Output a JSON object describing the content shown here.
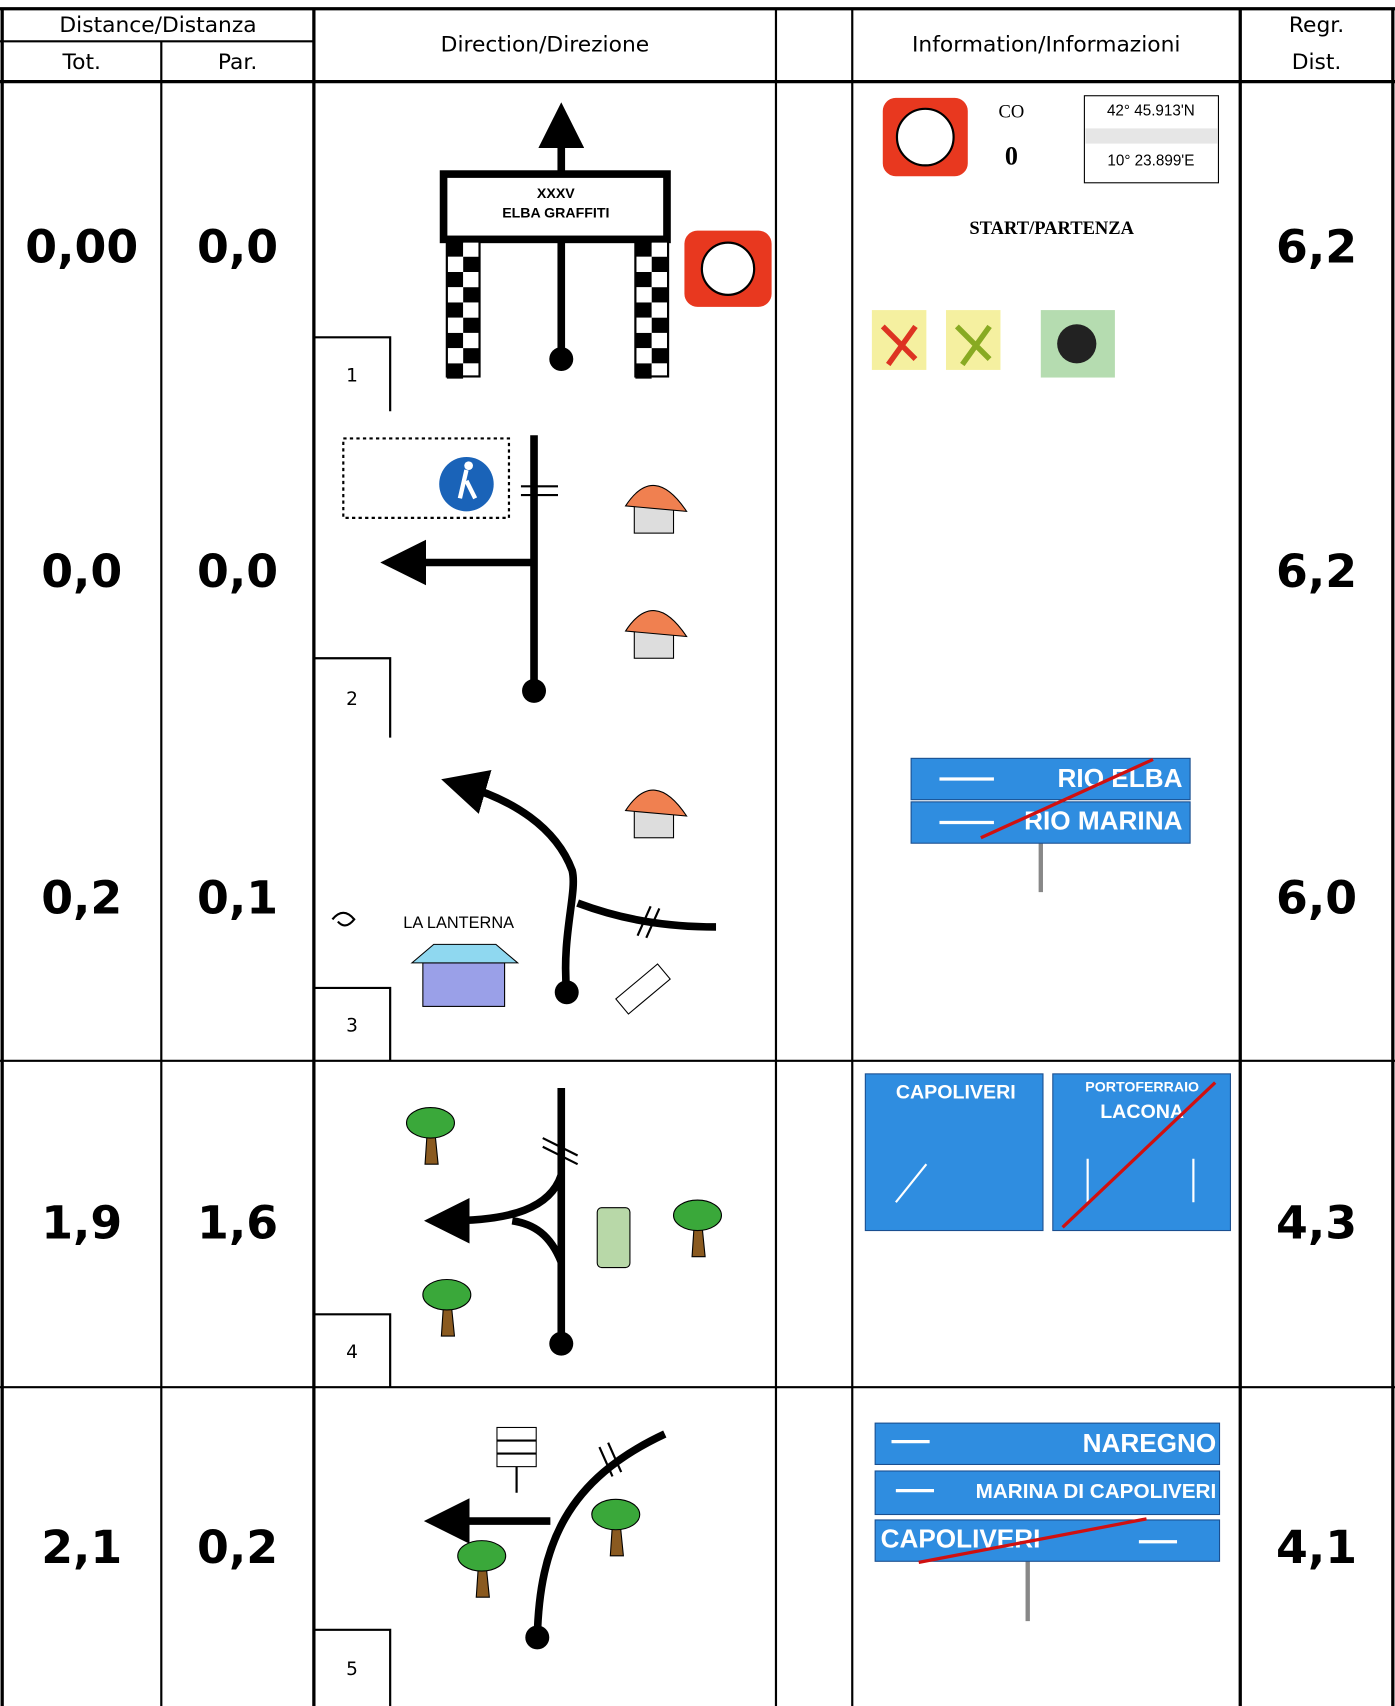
{
  "header": {
    "distance": "Distance/Distanza",
    "tot": "Tot.",
    "par": "Par.",
    "direction": "Direction/Direzione",
    "information": "Information/Informazioni",
    "regr": "Regr.",
    "dist": "Dist."
  },
  "rows": [
    {
      "tot": "0,00",
      "par": "0,0",
      "number": "1",
      "regr": "6,2"
    },
    {
      "tot": "0,0",
      "par": "0,0",
      "number": "2",
      "regr": "6,2"
    },
    {
      "tot": "0,2",
      "par": "0,1",
      "number": "3",
      "regr": "6,0"
    },
    {
      "tot": "1,9",
      "par": "1,6",
      "number": "4",
      "regr": "4,3"
    },
    {
      "tot": "2,1",
      "par": "0,2",
      "number": "5",
      "regr": "4,1"
    }
  ],
  "diagrams": {
    "banner_line1": "XXXV",
    "banner_line2": "ELBA GRAFFITI",
    "restaurant": "LA LANTERNA"
  },
  "info": {
    "co_label": "CO",
    "co_number": "0",
    "latitude": "42° 45.913'N",
    "longitude": "10° 23.899'E",
    "start": "START/PARTENZA",
    "row3_signs": [
      "RIO ELBA",
      "RIO MARINA"
    ],
    "row4_signs": [
      "CAPOLIVERI",
      "PORTOFERRAIO",
      "LACONA"
    ],
    "row5_signs": [
      "NAREGNO",
      "MARINA DI CAPOLIVERI",
      "CAPOLIVERI"
    ]
  }
}
